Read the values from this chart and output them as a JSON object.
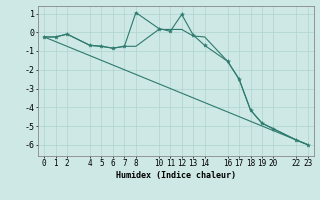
{
  "xlabel": "Humidex (Indice chaleur)",
  "background_color": "#cde8e5",
  "grid_color": "#afd4d0",
  "line_color": "#2d7a6e",
  "x_ticks": [
    0,
    1,
    2,
    4,
    5,
    6,
    7,
    8,
    10,
    11,
    12,
    13,
    14,
    16,
    17,
    18,
    19,
    20,
    22,
    23
  ],
  "xlim": [
    -0.5,
    23.5
  ],
  "ylim": [
    -6.6,
    1.4
  ],
  "y_ticks": [
    1,
    0,
    -1,
    -2,
    -3,
    -4,
    -5,
    -6
  ],
  "line1_x": [
    0,
    1,
    2,
    4,
    5,
    6,
    7,
    8,
    10,
    11,
    12,
    13,
    14,
    16,
    17,
    18,
    19,
    20,
    22,
    23
  ],
  "line1_y": [
    -0.25,
    -0.25,
    -0.1,
    -0.7,
    -0.75,
    -0.85,
    -0.75,
    1.05,
    0.2,
    0.05,
    0.95,
    -0.15,
    -0.7,
    -1.55,
    -2.5,
    -4.15,
    -4.85,
    -5.15,
    -5.75,
    -6.0
  ],
  "line2_x": [
    0,
    1,
    2,
    4,
    5,
    6,
    7,
    8,
    10,
    11,
    12,
    13,
    14,
    16,
    17,
    18,
    19,
    20,
    22,
    23
  ],
  "line2_y": [
    -0.25,
    -0.25,
    -0.1,
    -0.7,
    -0.75,
    -0.85,
    -0.75,
    -0.75,
    0.15,
    0.15,
    0.15,
    -0.2,
    -0.25,
    -1.55,
    -2.5,
    -4.15,
    -4.85,
    -5.15,
    -5.75,
    -6.0
  ],
  "line3_x": [
    0,
    23
  ],
  "line3_y": [
    -0.25,
    -6.0
  ]
}
